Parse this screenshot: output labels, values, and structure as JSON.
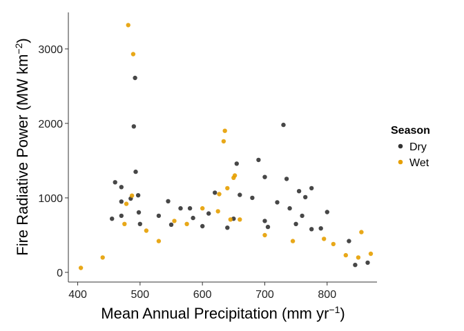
{
  "chart_data": {
    "type": "scatter",
    "title": "",
    "xlabel": "Mean Annual Precipitation (mm yr",
    "xlabel_sup": "−1",
    "xlabel_end": ")",
    "ylabel": "Fire Radiative Power (MW km",
    "ylabel_sup": "−2",
    "ylabel_end": ")",
    "xlim": [
      385,
      880
    ],
    "ylim": [
      -130,
      3490
    ],
    "x_ticks": [
      400,
      500,
      600,
      700,
      800
    ],
    "y_ticks": [
      0,
      1000,
      2000,
      3000
    ],
    "x_tick_labels": [
      "400",
      "500",
      "600",
      "700",
      "800"
    ],
    "y_tick_labels": [
      "0",
      "1000",
      "2000",
      "3000"
    ],
    "grid": false,
    "legend": {
      "title": "Season",
      "placement": "right",
      "entries": [
        {
          "label": "Dry",
          "color": "#333333"
        },
        {
          "label": "Wet",
          "color": "#E69F00"
        }
      ]
    },
    "series": [
      {
        "name": "Dry",
        "color": "#333333",
        "points": [
          [
            492,
            2610
          ],
          [
            490,
            1960
          ],
          [
            493,
            1350
          ],
          [
            730,
            1980
          ],
          [
            690,
            1510
          ],
          [
            735,
            1255
          ],
          [
            655,
            1460
          ],
          [
            470,
            1145
          ],
          [
            460,
            1210
          ],
          [
            497,
            1035
          ],
          [
            700,
            1280
          ],
          [
            775,
            1130
          ],
          [
            545,
            955
          ],
          [
            498,
            805
          ],
          [
            660,
            1040
          ],
          [
            580,
            860
          ],
          [
            620,
            1070
          ],
          [
            755,
            1090
          ],
          [
            765,
            1010
          ],
          [
            680,
            1000
          ],
          [
            740,
            860
          ],
          [
            485,
            990
          ],
          [
            565,
            860
          ],
          [
            610,
            790
          ],
          [
            470,
            950
          ],
          [
            530,
            760
          ],
          [
            720,
            940
          ],
          [
            800,
            810
          ],
          [
            455,
            720
          ],
          [
            585,
            730
          ],
          [
            650,
            720
          ],
          [
            700,
            690
          ],
          [
            760,
            760
          ],
          [
            790,
            590
          ],
          [
            470,
            760
          ],
          [
            500,
            650
          ],
          [
            550,
            640
          ],
          [
            600,
            620
          ],
          [
            640,
            600
          ],
          [
            705,
            610
          ],
          [
            750,
            650
          ],
          [
            775,
            580
          ],
          [
            835,
            420
          ],
          [
            865,
            130
          ],
          [
            845,
            100
          ]
        ]
      },
      {
        "name": "Wet",
        "color": "#E69F00",
        "points": [
          [
            481,
            3320
          ],
          [
            489,
            2930
          ],
          [
            636,
            1900
          ],
          [
            634,
            1760
          ],
          [
            640,
            1130
          ],
          [
            652,
            1300
          ],
          [
            627,
            1050
          ],
          [
            650,
            1270
          ],
          [
            487,
            1030
          ],
          [
            478,
            920
          ],
          [
            625,
            820
          ],
          [
            600,
            860
          ],
          [
            645,
            710
          ],
          [
            660,
            710
          ],
          [
            555,
            690
          ],
          [
            575,
            650
          ],
          [
            855,
            540
          ],
          [
            870,
            250
          ],
          [
            405,
            60
          ],
          [
            440,
            200
          ],
          [
            810,
            380
          ],
          [
            830,
            230
          ],
          [
            850,
            200
          ],
          [
            795,
            450
          ],
          [
            475,
            650
          ],
          [
            510,
            560
          ],
          [
            530,
            420
          ],
          [
            700,
            500
          ],
          [
            745,
            420
          ]
        ]
      }
    ]
  }
}
